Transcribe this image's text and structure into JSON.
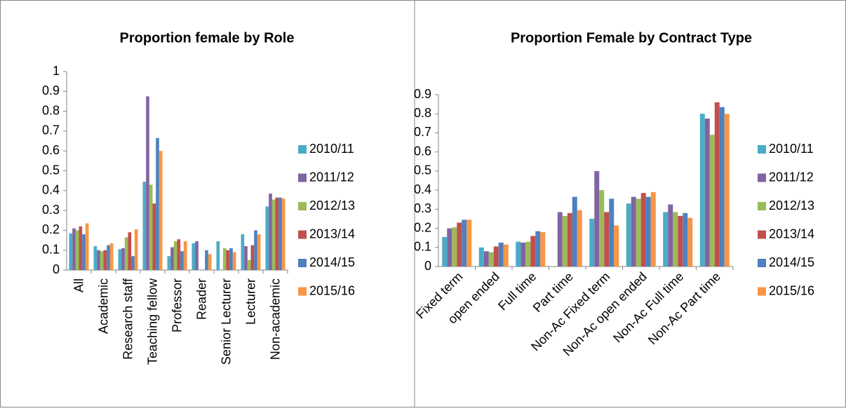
{
  "chart_data": [
    {
      "type": "bar",
      "title": "Proportion female by Role",
      "categories": [
        "All",
        "Academic",
        "Research staff",
        "Teaching fellow",
        "Professor",
        "Reader",
        "Senior Lecturer",
        "Lecturer",
        "Non-academic"
      ],
      "series": [
        {
          "name": "2010/11",
          "color": "#4bacc6",
          "values": [
            0.185,
            0.12,
            0.105,
            0.445,
            0.07,
            0.135,
            0.145,
            0.18,
            0.32
          ]
        },
        {
          "name": "2011/12",
          "color": "#8064a2",
          "values": [
            0.21,
            0.1,
            0.11,
            0.875,
            0.115,
            0.145,
            null,
            0.12,
            0.385
          ]
        },
        {
          "name": "2012/13",
          "color": "#9bbb59",
          "values": [
            0.2,
            0.095,
            0.165,
            0.43,
            0.145,
            null,
            0.11,
            0.05,
            0.355
          ]
        },
        {
          "name": "2013/14",
          "color": "#c0504d",
          "values": [
            0.22,
            0.1,
            0.19,
            0.335,
            0.155,
            null,
            0.1,
            0.125,
            0.365
          ]
        },
        {
          "name": "2014/15",
          "color": "#4f81bd",
          "values": [
            0.18,
            0.125,
            0.07,
            0.665,
            0.095,
            0.1,
            0.11,
            0.2,
            0.365
          ]
        },
        {
          "name": "2015/16",
          "color": "#f79646",
          "values": [
            0.235,
            0.135,
            0.205,
            0.6,
            0.145,
            0.08,
            0.09,
            0.18,
            0.36
          ]
        }
      ],
      "ylim": [
        0,
        1
      ],
      "yticks": [
        0,
        0.1,
        0.2,
        0.3,
        0.4,
        0.5,
        0.6,
        0.7,
        0.8,
        0.9,
        1
      ],
      "grid": false,
      "legend": "right"
    },
    {
      "type": "bar",
      "title": "Proportion Female by Contract Type",
      "categories": [
        "Fixed term",
        "open ended",
        "Full time",
        "Part time",
        "Non-Ac Fixed term",
        "Non-Ac open ended",
        "Non-Ac Full time",
        "Non-Ac Part time"
      ],
      "series": [
        {
          "name": "2010/11",
          "color": "#4bacc6",
          "values": [
            0.155,
            0.1,
            0.13,
            null,
            0.25,
            0.33,
            0.285,
            0.8
          ]
        },
        {
          "name": "2011/12",
          "color": "#8064a2",
          "values": [
            0.2,
            0.08,
            0.125,
            0.285,
            0.5,
            0.365,
            0.325,
            0.775
          ]
        },
        {
          "name": "2012/13",
          "color": "#9bbb59",
          "values": [
            0.205,
            0.075,
            0.13,
            0.265,
            0.4,
            0.355,
            0.285,
            0.69
          ]
        },
        {
          "name": "2013/14",
          "color": "#c0504d",
          "values": [
            0.23,
            0.105,
            0.16,
            0.28,
            0.285,
            0.385,
            0.265,
            0.86
          ]
        },
        {
          "name": "2014/15",
          "color": "#4f81bd",
          "values": [
            0.245,
            0.125,
            0.185,
            0.365,
            0.355,
            0.365,
            0.28,
            0.835
          ]
        },
        {
          "name": "2015/16",
          "color": "#f79646",
          "values": [
            0.245,
            0.115,
            0.18,
            0.295,
            0.215,
            0.39,
            0.255,
            0.8
          ]
        }
      ],
      "ylim": [
        0,
        0.9
      ],
      "yticks": [
        0,
        0.1,
        0.2,
        0.3,
        0.4,
        0.5,
        0.6,
        0.7,
        0.8,
        0.9
      ],
      "grid": false,
      "legend": "right"
    }
  ]
}
